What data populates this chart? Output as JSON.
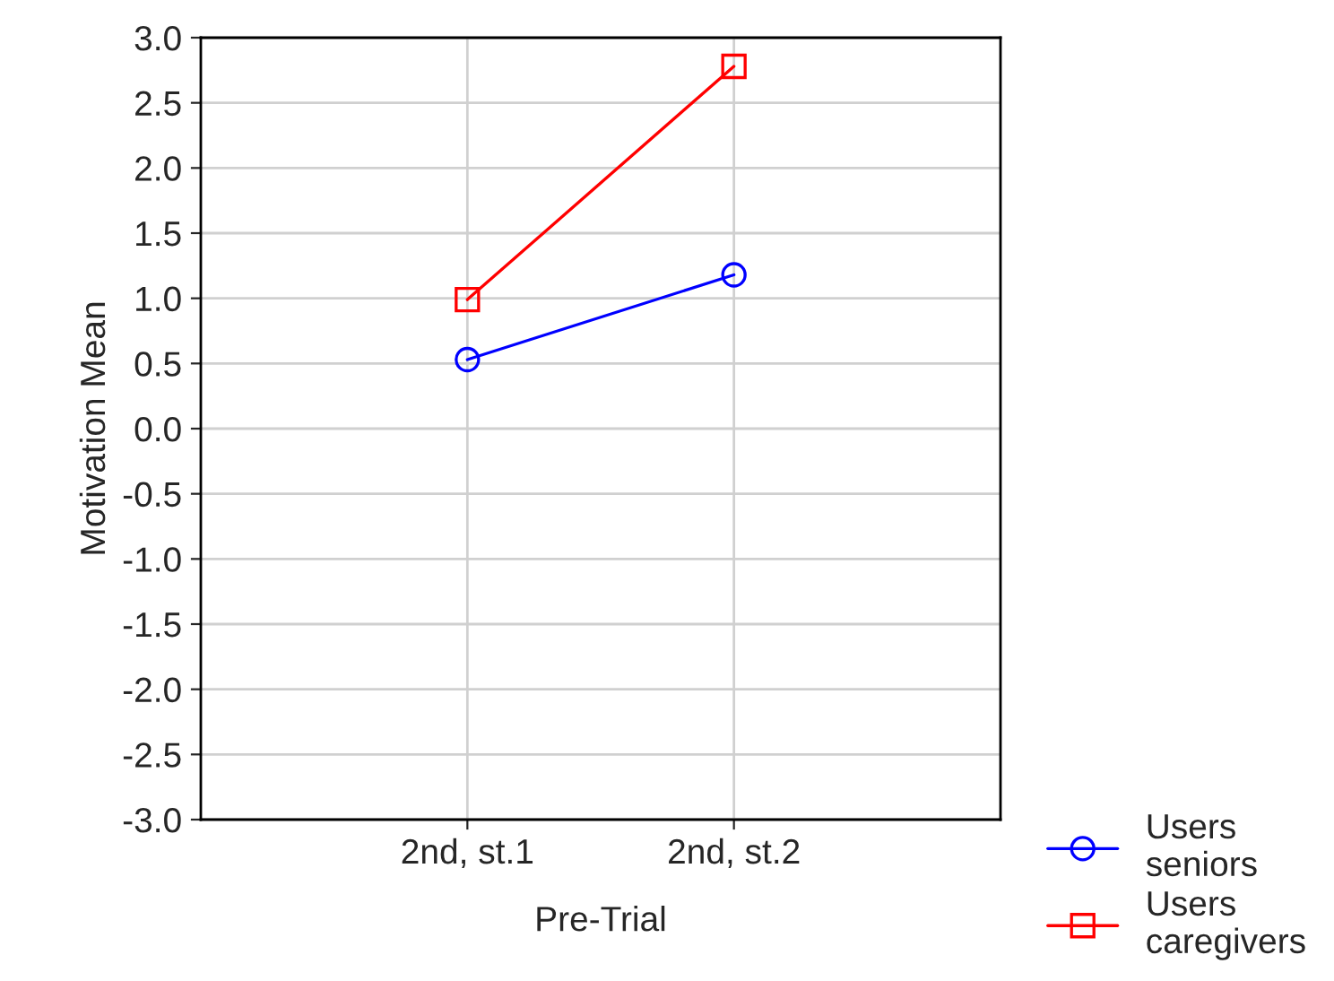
{
  "chart_data": {
    "type": "line",
    "xlabel": "Pre-Trial",
    "ylabel": "Motivation Mean",
    "categories": [
      "2nd, st.1",
      "2nd, st.2"
    ],
    "series": [
      {
        "name": "Users\nseniors",
        "color": "#0000ff",
        "marker": "circle",
        "values": [
          0.53,
          1.18
        ]
      },
      {
        "name": "Users\ncaregivers",
        "color": "#ff0000",
        "marker": "square",
        "values": [
          0.99,
          2.78
        ]
      }
    ],
    "ylim": [
      -3.0,
      3.0
    ],
    "yticks": [
      {
        "value": -3.0,
        "label": "-3.0"
      },
      {
        "value": -2.5,
        "label": "-2.5"
      },
      {
        "value": -2.0,
        "label": "-2.0"
      },
      {
        "value": -1.5,
        "label": "-1.5"
      },
      {
        "value": -1.0,
        "label": "-1.0"
      },
      {
        "value": -0.5,
        "label": "-0.5"
      },
      {
        "value": 0.0,
        "label": "0.0"
      },
      {
        "value": 0.5,
        "label": "0.5"
      },
      {
        "value": 1.0,
        "label": "1.0"
      },
      {
        "value": 1.5,
        "label": "1.5"
      },
      {
        "value": 2.0,
        "label": "2.0"
      },
      {
        "value": 2.5,
        "label": "2.5"
      },
      {
        "value": 3.0,
        "label": "3.0"
      }
    ],
    "grid": true,
    "legend": "bottom right",
    "line_style": "solid"
  }
}
